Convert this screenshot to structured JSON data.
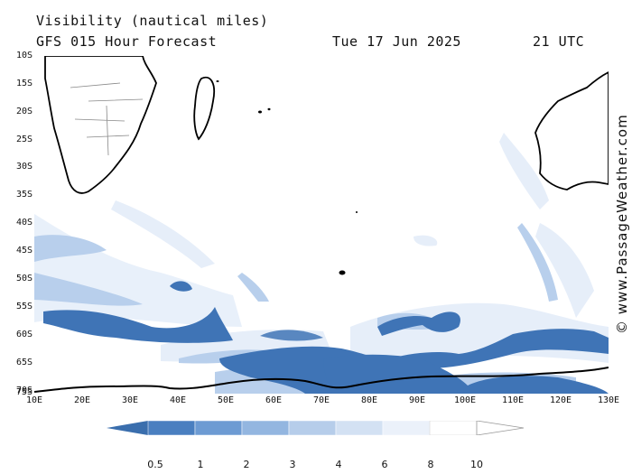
{
  "header": {
    "title": "Visibility (nautical miles)",
    "subtitle": "GFS 015 Hour Forecast",
    "date": "Tue 17 Jun 2025",
    "time": "21 UTC"
  },
  "map": {
    "lat_labels": [
      "10S",
      "15S",
      "20S",
      "25S",
      "30S",
      "35S",
      "40S",
      "45S",
      "50S",
      "55S",
      "60S",
      "65S",
      "70S",
      "75S"
    ],
    "lon_labels": [
      "10E",
      "20E",
      "30E",
      "40E",
      "50E",
      "60E",
      "70E",
      "80E",
      "90E",
      "100E",
      "110E",
      "120E",
      "130E"
    ],
    "region": {
      "lon_range": [
        10,
        130
      ],
      "lat_range": [
        -10,
        -75
      ]
    }
  },
  "legend": {
    "labels": [
      "0.5",
      "1",
      "2",
      "3",
      "4",
      "6",
      "8",
      "10"
    ],
    "colors": [
      "#3a6ead",
      "#4a7fc0",
      "#6d9bd3",
      "#93b6e0",
      "#b6cdea",
      "#d3e1f3",
      "#ebf1fa",
      "#ffffff"
    ]
  },
  "credit": "© www.PassageWeather.com"
}
